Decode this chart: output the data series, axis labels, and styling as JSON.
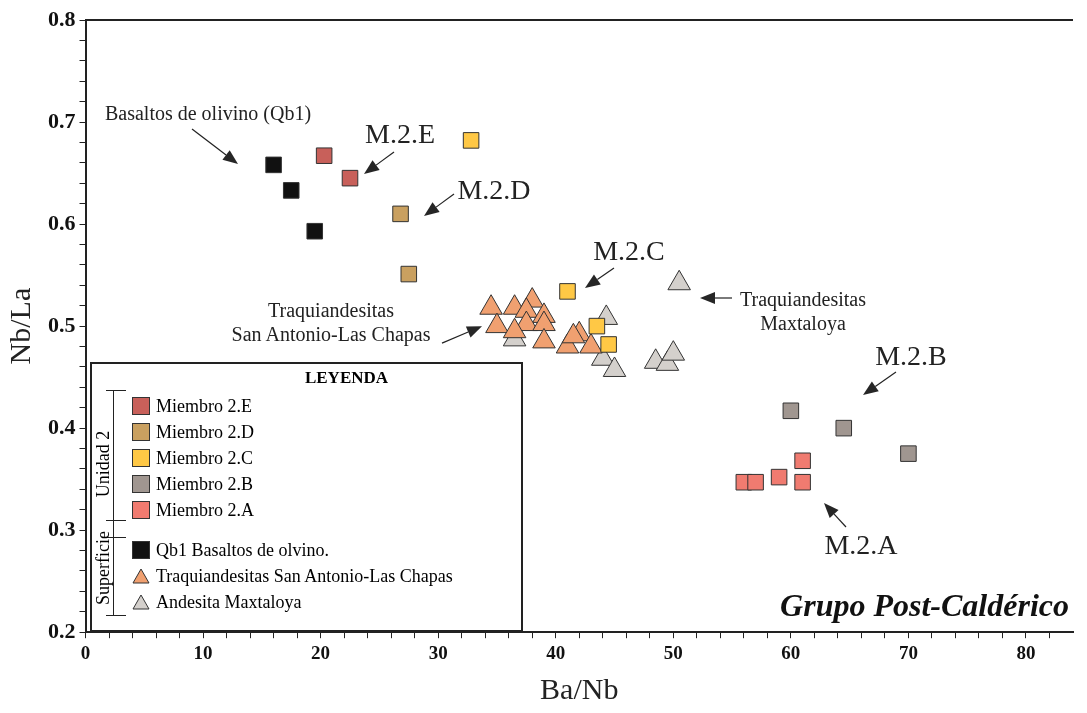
{
  "chart_data": {
    "type": "scatter",
    "xlabel": "Ba/Nb",
    "ylabel": "Nb/La",
    "legend_title": "LEYENDA",
    "legend": "bottom left",
    "grid": false,
    "xlim": [
      0,
      84
    ],
    "xticks": [
      0,
      {
        "value": 2,
        "label": null
      },
      {
        "value": 4,
        "label": null
      },
      {
        "value": 6,
        "label": null
      },
      {
        "value": 8,
        "label": null
      },
      10,
      {
        "value": 12,
        "label": null
      },
      {
        "value": 14,
        "label": null
      },
      {
        "value": 16,
        "label": null
      },
      {
        "value": 18,
        "label": null
      },
      20,
      {
        "value": 22,
        "label": null
      },
      {
        "value": 24,
        "label": null
      },
      {
        "value": 26,
        "label": null
      },
      {
        "value": 28,
        "label": null
      },
      30,
      {
        "value": 32,
        "label": null
      },
      {
        "value": 34,
        "label": null
      },
      {
        "value": 36,
        "label": null
      },
      {
        "value": 38,
        "label": null
      },
      40,
      {
        "value": 42,
        "label": null
      },
      {
        "value": 44,
        "label": null
      },
      {
        "value": 46,
        "label": null
      },
      {
        "value": 48,
        "label": null
      },
      50,
      {
        "value": 52,
        "label": null
      },
      {
        "value": 54,
        "label": null
      },
      {
        "value": 56,
        "label": null
      },
      {
        "value": 58,
        "label": null
      },
      60,
      {
        "value": 62,
        "label": null
      },
      {
        "value": 64,
        "label": null
      },
      {
        "value": 66,
        "label": null
      },
      {
        "value": 68,
        "label": null
      },
      70,
      {
        "value": 72,
        "label": null
      },
      {
        "value": 74,
        "label": null
      },
      {
        "value": 76,
        "label": null
      },
      {
        "value": 78,
        "label": null
      },
      80,
      {
        "value": 82,
        "label": null
      }
    ],
    "ylim": [
      0.2,
      0.8
    ],
    "yticks": [
      {
        "value": 0.2,
        "label": "0.2"
      },
      {
        "value": 0.22,
        "label": null
      },
      {
        "value": 0.24,
        "label": null
      },
      {
        "value": 0.26,
        "label": null
      },
      {
        "value": 0.28,
        "label": null
      },
      {
        "value": 0.3,
        "label": "0.3"
      },
      {
        "value": 0.32,
        "label": null
      },
      {
        "value": 0.34,
        "label": null
      },
      {
        "value": 0.36,
        "label": null
      },
      {
        "value": 0.38,
        "label": null
      },
      {
        "value": 0.4,
        "label": "0.4"
      },
      {
        "value": 0.42,
        "label": null
      },
      {
        "value": 0.44,
        "label": null
      },
      {
        "value": 0.46,
        "label": null
      },
      {
        "value": 0.48,
        "label": null
      },
      {
        "value": 0.5,
        "label": "0.5"
      },
      {
        "value": 0.52,
        "label": null
      },
      {
        "value": 0.54,
        "label": null
      },
      {
        "value": 0.56,
        "label": null
      },
      {
        "value": 0.58,
        "label": null
      },
      {
        "value": 0.6,
        "label": "0.6"
      },
      {
        "value": 0.62,
        "label": null
      },
      {
        "value": 0.64,
        "label": null
      },
      {
        "value": 0.66,
        "label": null
      },
      {
        "value": 0.68,
        "label": null
      },
      {
        "value": 0.7,
        "label": "0.7"
      },
      {
        "value": 0.72,
        "label": null
      },
      {
        "value": 0.74,
        "label": null
      },
      {
        "value": 0.76,
        "label": null
      },
      {
        "value": 0.78,
        "label": null
      },
      {
        "value": 0.8,
        "label": "0.8"
      }
    ],
    "series": [
      {
        "name": "Miembro 2.E",
        "color": "#c8605a",
        "marker": "square",
        "x": [
          20.3,
          22.5
        ],
        "values": [
          0.667,
          0.645
        ]
      },
      {
        "name": "Miembro 2.D",
        "color": "#c9a060",
        "marker": "square",
        "x": [
          26.8,
          27.5
        ],
        "values": [
          0.61,
          0.551
        ]
      },
      {
        "name": "Miembro 2.C",
        "color": "#ffc845",
        "marker": "square",
        "x": [
          32.8,
          41,
          43.5,
          44.5
        ],
        "values": [
          0.682,
          0.534,
          0.5,
          0.482
        ]
      },
      {
        "name": "Miembro 2.B",
        "color": "#a09690",
        "marker": "square",
        "x": [
          60,
          64.5,
          70
        ],
        "values": [
          0.417,
          0.4,
          0.375
        ]
      },
      {
        "name": "Miembro 2.A",
        "color": "#f07b70",
        "marker": "square",
        "x": [
          56,
          57,
          59,
          61,
          61
        ],
        "values": [
          0.347,
          0.347,
          0.352,
          0.368,
          0.347
        ]
      },
      {
        "name": "Qb1 Basaltos de olvino.",
        "color": "#111111",
        "marker": "square",
        "x": [
          16,
          17.5,
          19.5
        ],
        "values": [
          0.658,
          0.633,
          0.593
        ]
      },
      {
        "name": "Traquiandesitas San Antonio-Las Chapas",
        "color": "#f0a070",
        "marker": "triangle",
        "x": [
          34.5,
          36.5,
          38,
          37.5,
          39,
          35,
          37.5,
          39,
          36.5,
          39,
          41,
          42,
          43,
          41.5
        ],
        "values": [
          0.518,
          0.518,
          0.525,
          0.515,
          0.51,
          0.5,
          0.502,
          0.502,
          0.495,
          0.485,
          0.48,
          0.492,
          0.48,
          0.49
        ]
      },
      {
        "name": "Andesita Maxtaloya",
        "color": "#d4d0cc",
        "marker": "triangle",
        "x": [
          50.5,
          44.3,
          44,
          45,
          48.5,
          49.5,
          50,
          36.5
        ],
        "values": [
          0.542,
          0.508,
          0.468,
          0.457,
          0.465,
          0.463,
          0.473,
          0.487
        ]
      }
    ],
    "annotations": [
      "Basaltos de olivino (Qb1)",
      "M.2.E",
      "M.2.D",
      "M.2.C",
      "Traquiandesitas\nSan Antonio-Las Chapas",
      "Traquiandesitas\nMaxtaloya",
      "M.2.B",
      "M.2.A",
      "Grupo Post-Caldérico",
      "Unidad 2",
      "Superficie"
    ]
  }
}
